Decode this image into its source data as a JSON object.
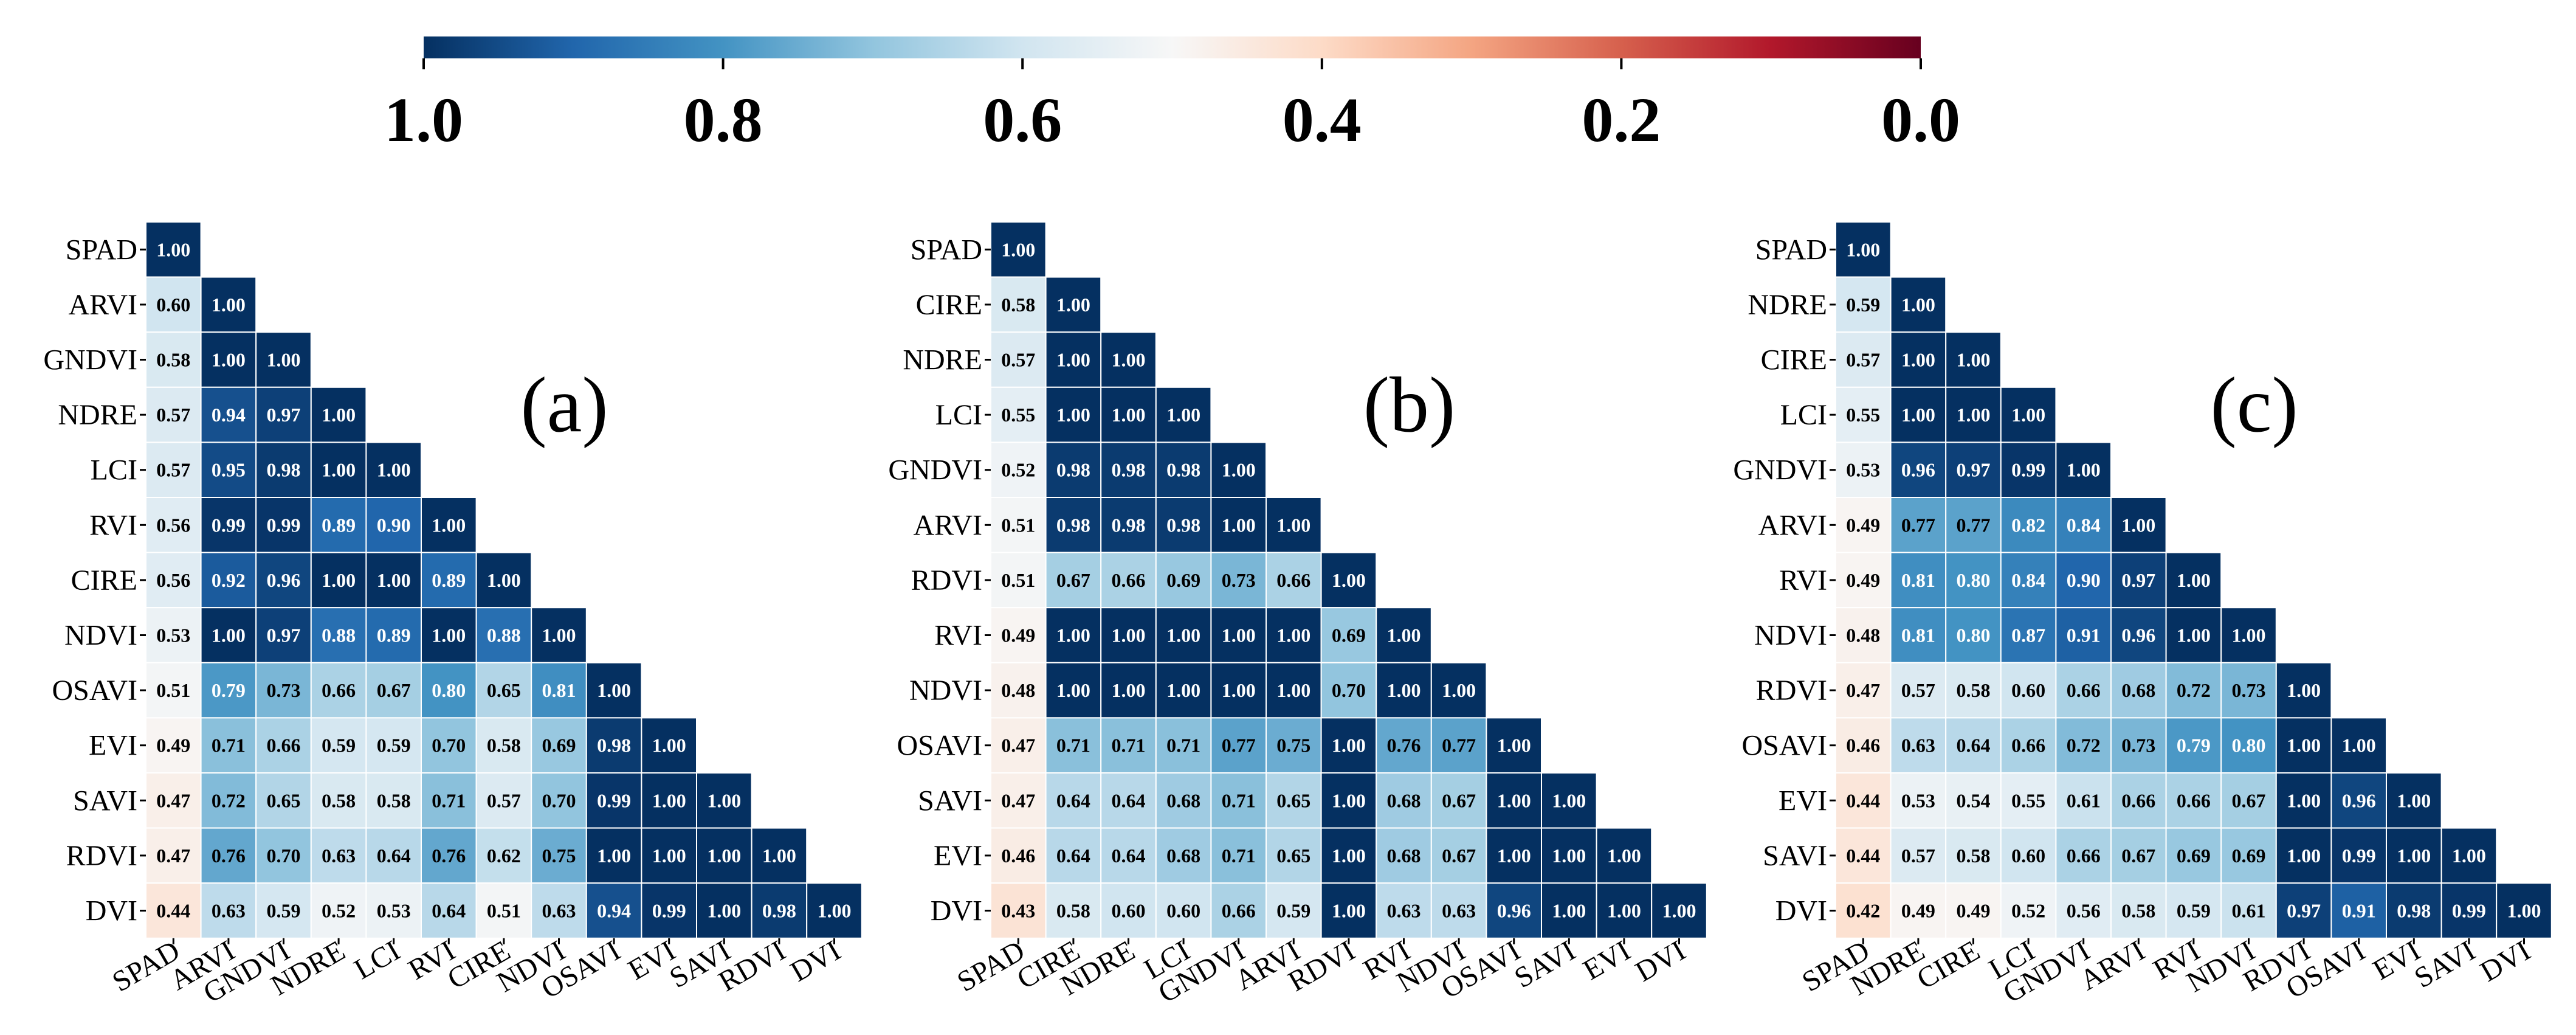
{
  "chart_data": {
    "type": "heatmap",
    "colorbar": {
      "colors": [
        "#053061",
        "#2166ac",
        "#4393c3",
        "#92c5de",
        "#d1e5f0",
        "#f7f7f7",
        "#fddbc7",
        "#f4a582",
        "#d6604d",
        "#b2182b",
        "#67001f"
      ],
      "tick_labels": [
        "1.0",
        "0.8",
        "0.6",
        "0.4",
        "0.2",
        "0.0"
      ],
      "tick_values": [
        1.0,
        0.8,
        0.6,
        0.4,
        0.2,
        0.0
      ]
    },
    "panels": [
      {
        "label": "(a)",
        "variables": [
          "SPAD",
          "ARVI",
          "GNDVI",
          "NDRE",
          "LCI",
          "RVI",
          "CIRE",
          "NDVI",
          "OSAVI",
          "EVI",
          "SAVI",
          "RDVI",
          "DVI"
        ],
        "matrix": [
          [
            "1.00"
          ],
          [
            "0.60",
            "1.00"
          ],
          [
            "0.58",
            "1.00",
            "1.00"
          ],
          [
            "0.57",
            "0.94",
            "0.97",
            "1.00"
          ],
          [
            "0.57",
            "0.95",
            "0.98",
            "1.00",
            "1.00"
          ],
          [
            "0.56",
            "0.99",
            "0.99",
            "0.89",
            "0.90",
            "1.00"
          ],
          [
            "0.56",
            "0.92",
            "0.96",
            "1.00",
            "1.00",
            "0.89",
            "1.00"
          ],
          [
            "0.53",
            "1.00",
            "0.97",
            "0.88",
            "0.89",
            "1.00",
            "0.88",
            "1.00"
          ],
          [
            "0.51",
            "0.79",
            "0.73",
            "0.66",
            "0.67",
            "0.80",
            "0.65",
            "0.81",
            "1.00"
          ],
          [
            "0.49",
            "0.71",
            "0.66",
            "0.59",
            "0.59",
            "0.70",
            "0.58",
            "0.69",
            "0.98",
            "1.00"
          ],
          [
            "0.47",
            "0.72",
            "0.65",
            "0.58",
            "0.58",
            "0.71",
            "0.57",
            "0.70",
            "0.99",
            "1.00",
            "1.00"
          ],
          [
            "0.47",
            "0.76",
            "0.70",
            "0.63",
            "0.64",
            "0.76",
            "0.62",
            "0.75",
            "1.00",
            "1.00",
            "1.00",
            "1.00"
          ],
          [
            "0.44",
            "0.63",
            "0.59",
            "0.52",
            "0.53",
            "0.64",
            "0.51",
            "0.63",
            "0.94",
            "0.99",
            "1.00",
            "0.98",
            "1.00"
          ]
        ]
      },
      {
        "label": "(b)",
        "variables": [
          "SPAD",
          "CIRE",
          "NDRE",
          "LCI",
          "GNDVI",
          "ARVI",
          "RDVI",
          "RVI",
          "NDVI",
          "OSAVI",
          "SAVI",
          "EVI",
          "DVI"
        ],
        "matrix": [
          [
            "1.00"
          ],
          [
            "0.58",
            "1.00"
          ],
          [
            "0.57",
            "1.00",
            "1.00"
          ],
          [
            "0.55",
            "1.00",
            "1.00",
            "1.00"
          ],
          [
            "0.52",
            "0.98",
            "0.98",
            "0.98",
            "1.00"
          ],
          [
            "0.51",
            "0.98",
            "0.98",
            "0.98",
            "1.00",
            "1.00"
          ],
          [
            "0.51",
            "0.67",
            "0.66",
            "0.69",
            "0.73",
            "0.66",
            "1.00"
          ],
          [
            "0.49",
            "1.00",
            "1.00",
            "1.00",
            "1.00",
            "1.00",
            "0.69",
            "1.00"
          ],
          [
            "0.48",
            "1.00",
            "1.00",
            "1.00",
            "1.00",
            "1.00",
            "0.70",
            "1.00",
            "1.00"
          ],
          [
            "0.47",
            "0.71",
            "0.71",
            "0.71",
            "0.77",
            "0.75",
            "1.00",
            "0.76",
            "0.77",
            "1.00"
          ],
          [
            "0.47",
            "0.64",
            "0.64",
            "0.68",
            "0.71",
            "0.65",
            "1.00",
            "0.68",
            "0.67",
            "1.00",
            "1.00"
          ],
          [
            "0.46",
            "0.64",
            "0.64",
            "0.68",
            "0.71",
            "0.65",
            "1.00",
            "0.68",
            "0.67",
            "1.00",
            "1.00",
            "1.00"
          ],
          [
            "0.43",
            "0.58",
            "0.60",
            "0.60",
            "0.66",
            "0.59",
            "1.00",
            "0.63",
            "0.63",
            "0.96",
            "1.00",
            "1.00",
            "1.00"
          ]
        ]
      },
      {
        "label": "(c)",
        "variables": [
          "SPAD",
          "NDRE",
          "CIRE",
          "LCI",
          "GNDVI",
          "ARVI",
          "RVI",
          "NDVI",
          "RDVI",
          "OSAVI",
          "EVI",
          "SAVI",
          "DVI"
        ],
        "matrix": [
          [
            "1.00"
          ],
          [
            "0.59",
            "1.00"
          ],
          [
            "0.57",
            "1.00",
            "1.00"
          ],
          [
            "0.55",
            "1.00",
            "1.00",
            "1.00"
          ],
          [
            "0.53",
            "0.96",
            "0.97",
            "0.99",
            "1.00"
          ],
          [
            "0.49",
            "0.77",
            "0.77",
            "0.82",
            "0.84",
            "1.00"
          ],
          [
            "0.49",
            "0.81",
            "0.80",
            "0.84",
            "0.90",
            "0.97",
            "1.00"
          ],
          [
            "0.48",
            "0.81",
            "0.80",
            "0.87",
            "0.91",
            "0.96",
            "1.00",
            "1.00"
          ],
          [
            "0.47",
            "0.57",
            "0.58",
            "0.60",
            "0.66",
            "0.68",
            "0.72",
            "0.73",
            "1.00"
          ],
          [
            "0.46",
            "0.63",
            "0.64",
            "0.66",
            "0.72",
            "0.73",
            "0.79",
            "0.80",
            "1.00",
            "1.00"
          ],
          [
            "0.44",
            "0.53",
            "0.54",
            "0.55",
            "0.61",
            "0.66",
            "0.66",
            "0.67",
            "1.00",
            "0.96",
            "1.00"
          ],
          [
            "0.44",
            "0.57",
            "0.58",
            "0.60",
            "0.66",
            "0.67",
            "0.69",
            "0.69",
            "1.00",
            "0.99",
            "1.00",
            "1.00"
          ],
          [
            "0.42",
            "0.49",
            "0.49",
            "0.52",
            "0.56",
            "0.58",
            "0.59",
            "0.61",
            "0.97",
            "0.91",
            "0.98",
            "0.99",
            "1.00"
          ]
        ]
      }
    ]
  }
}
